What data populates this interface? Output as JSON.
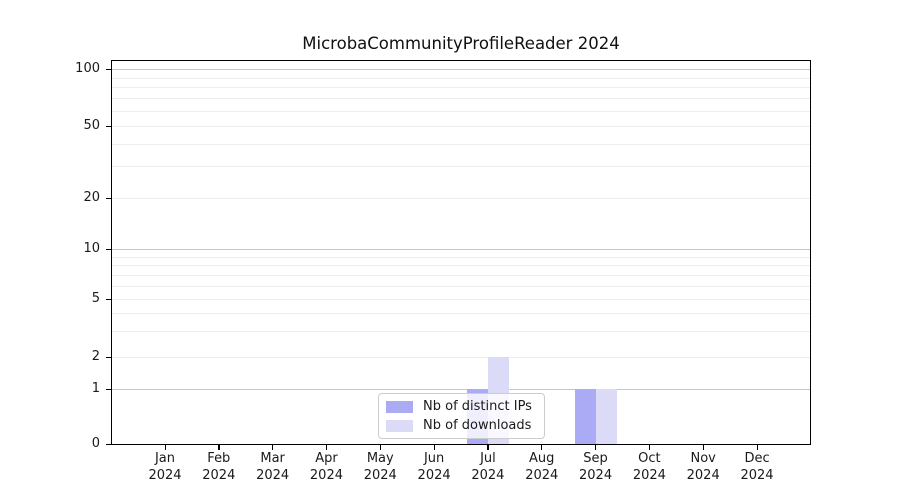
{
  "chart_data": {
    "type": "bar",
    "title": "MicrobaCommunityProfileReader 2024",
    "x_tick_months": [
      "Jan",
      "Feb",
      "Mar",
      "Apr",
      "May",
      "Jun",
      "Jul",
      "Aug",
      "Sep",
      "Oct",
      "Nov",
      "Dec"
    ],
    "x_tick_year": "2024",
    "y_ticks": [
      0,
      1,
      2,
      5,
      10,
      20,
      50,
      100
    ],
    "y_scale": "log-like (linear segment from 0 to 1)",
    "ylim": [
      0,
      110
    ],
    "grid": true,
    "legend": {
      "position": "lower center, inside plot",
      "entries": [
        "Nb of distinct IPs",
        "Nb of downloads"
      ]
    },
    "series": [
      {
        "name": "Nb of distinct IPs",
        "color": "#aaaaf5",
        "values": [
          0,
          0,
          0,
          0,
          0,
          0,
          1,
          0,
          1,
          0,
          0,
          0
        ]
      },
      {
        "name": "Nb of downloads",
        "color": "#dbdbf8",
        "values": [
          0,
          0,
          0,
          0,
          0,
          0,
          2,
          0,
          1,
          0,
          0,
          0
        ]
      }
    ]
  }
}
